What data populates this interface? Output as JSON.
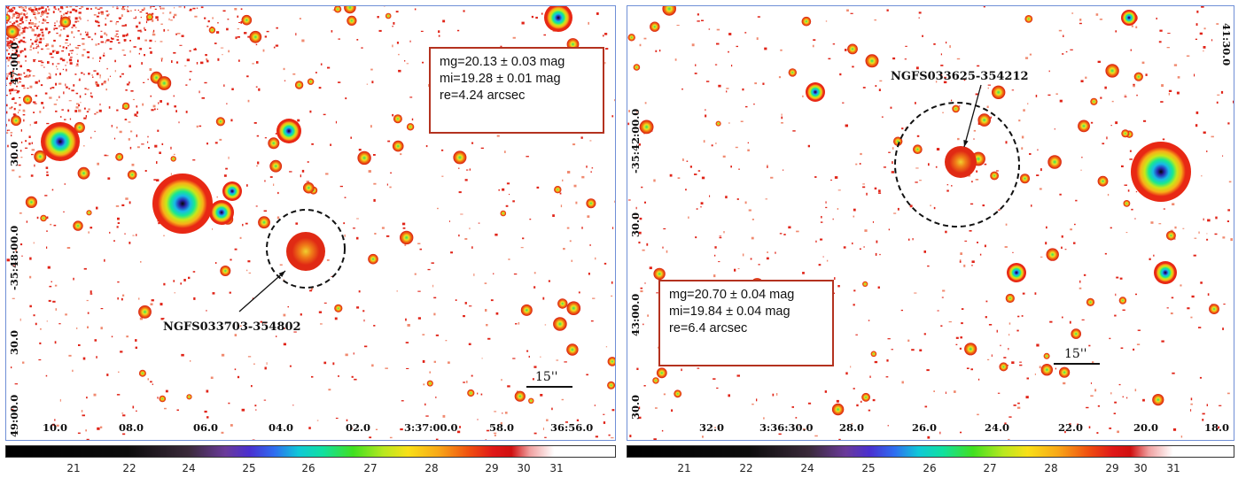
{
  "left_panel": {
    "galaxy_label": "NGFS033703-354802",
    "info": {
      "mg": "mg=20.13 ± 0.03 mag",
      "mi": "mi=19.28 ± 0.01 mag",
      "re": "re=4.24 arcsec"
    },
    "scale_label": "15''",
    "ra_ticks": [
      "10.0",
      "08.0",
      "06.0",
      "04.0",
      "02.0",
      "3:37:00.0",
      "58.0",
      "36:56.0"
    ],
    "dec_ticks": [
      "47:00.0",
      "30.0",
      "-35:48:00.0",
      "30.0",
      "49:00.0"
    ],
    "colorbar_ticks": [
      "21",
      "22",
      "24",
      "25",
      "26",
      "27",
      "28",
      "29",
      "30",
      "31"
    ]
  },
  "right_panel": {
    "galaxy_label": "NGFS033625-354212",
    "info": {
      "mg": "mg=20.70 ± 0.04 mag",
      "mi": "mi=19.84 ± 0.04 mag",
      "re": "re=6.4 arcsec"
    },
    "scale_label": "15''",
    "ra_ticks": [
      "32.0",
      "3:36:30.0",
      "28.0",
      "26.0",
      "24.0",
      "22.0",
      "20.0",
      "18.0"
    ],
    "dec_ticks": [
      "41:30.0",
      "-35:42:00.0",
      "30.0",
      "43:00.0",
      "30.0"
    ],
    "colorbar_ticks": [
      "21",
      "22",
      "24",
      "25",
      "26",
      "27",
      "28",
      "29",
      "30",
      "31"
    ]
  },
  "colors": {
    "info_border": "#b4321f",
    "frame": "#6f8fd6",
    "circle": "#111111"
  }
}
